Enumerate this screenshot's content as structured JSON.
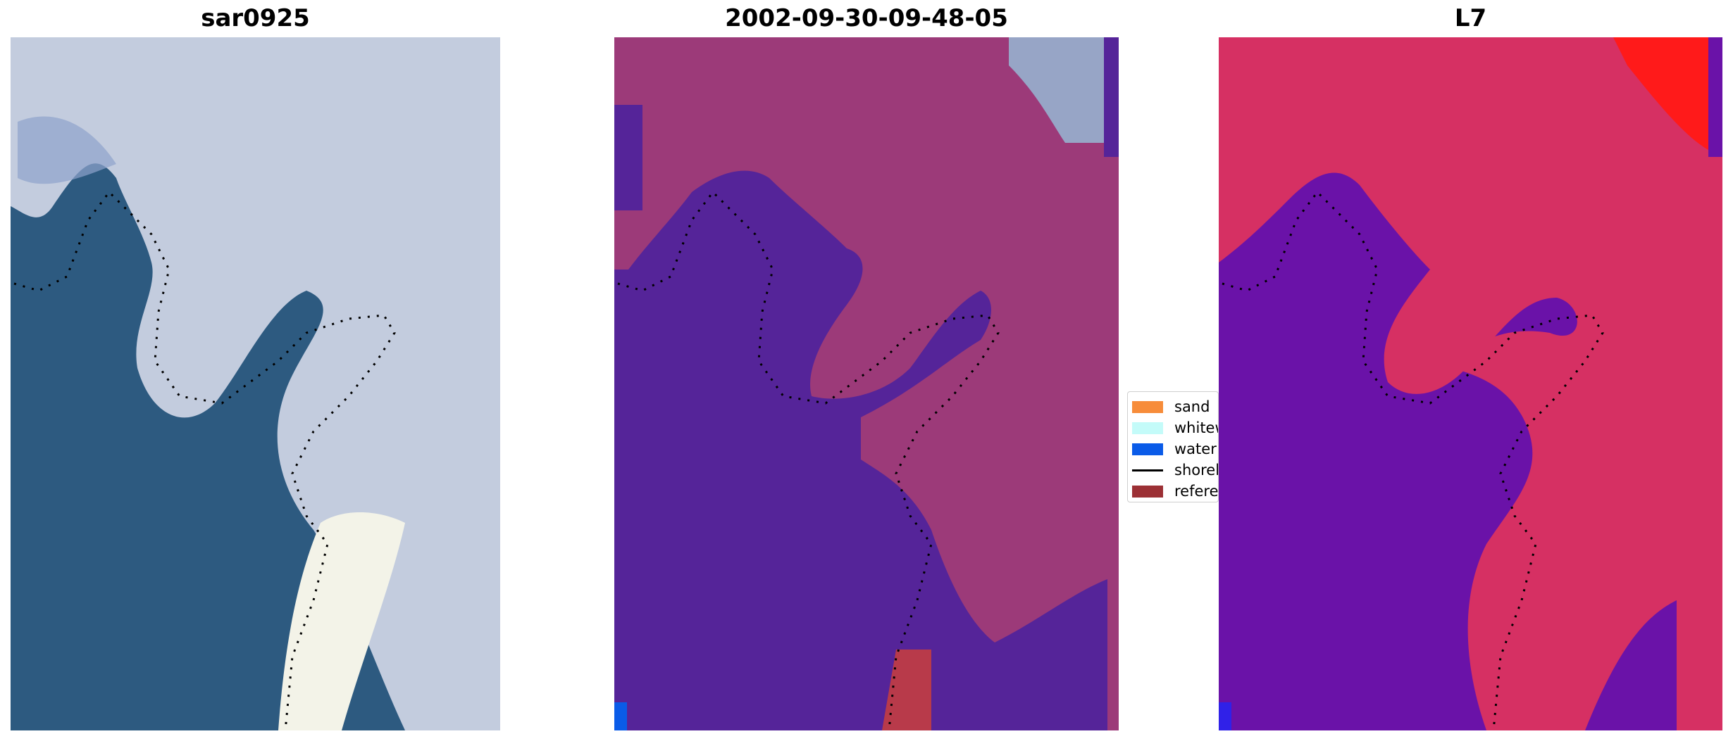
{
  "panels": [
    {
      "title": "sar0925"
    },
    {
      "title": "2002-09-30-09-48-05"
    },
    {
      "title": "L7"
    }
  ],
  "legend": {
    "items": [
      {
        "label": "sand",
        "color": "#f78c3a",
        "kind": "patch"
      },
      {
        "label": "whitew",
        "color": "#c4fbf9",
        "kind": "patch"
      },
      {
        "label": "water",
        "color": "#0a5be8",
        "kind": "patch"
      },
      {
        "label": "shorel",
        "color": "#000000",
        "kind": "line"
      },
      {
        "label": "referen",
        "color": "#9c3035",
        "kind": "patch"
      }
    ]
  },
  "colors": {
    "sea": "#2d5a80",
    "foam": "#c3ccde",
    "classified_water": "#552499",
    "classified_land": "#9c3a79",
    "index_water": "#6a12a8",
    "index_land": "#d63063",
    "index_hot": "#ff1a1a"
  }
}
